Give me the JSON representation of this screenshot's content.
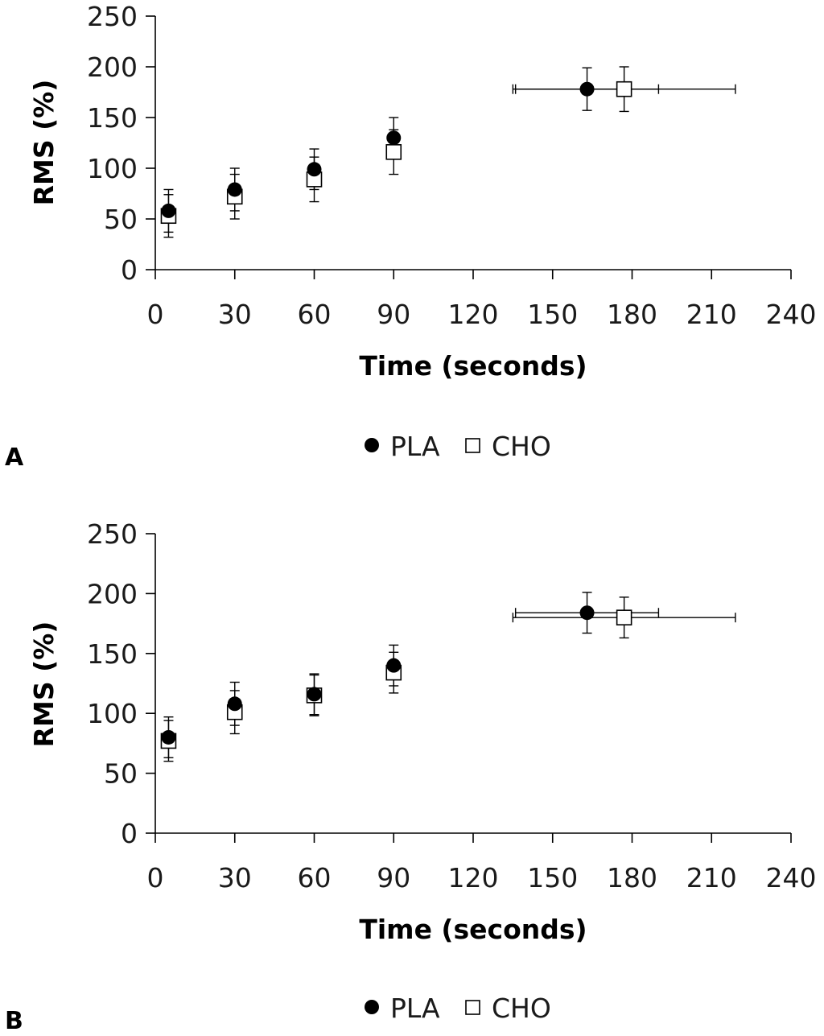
{
  "chart_data": [
    {
      "type": "scatter",
      "panel_label": "A",
      "xlabel": "Time (seconds)",
      "ylabel": "RMS (%)",
      "xlim": [
        0,
        240
      ],
      "ylim": [
        0,
        250
      ],
      "xticks": [
        0,
        30,
        60,
        90,
        120,
        150,
        180,
        210,
        240
      ],
      "yticks": [
        0,
        50,
        100,
        150,
        200,
        250
      ],
      "legend": [
        "PLA",
        "CHO"
      ],
      "series": [
        {
          "name": "PLA",
          "marker": "filled-circle",
          "points": [
            {
              "x": 5,
              "y": 58,
              "yerr": 21
            },
            {
              "x": 30,
              "y": 79,
              "yerr": 21
            },
            {
              "x": 60,
              "y": 99,
              "yerr": 20
            },
            {
              "x": 90,
              "y": 130,
              "yerr": 20
            },
            {
              "x": 163,
              "y": 178,
              "yerr": 21,
              "xerr": 27
            }
          ]
        },
        {
          "name": "CHO",
          "marker": "open-square",
          "points": [
            {
              "x": 5,
              "y": 53,
              "yerr": 21
            },
            {
              "x": 30,
              "y": 72,
              "yerr": 22
            },
            {
              "x": 60,
              "y": 89,
              "yerr": 22
            },
            {
              "x": 90,
              "y": 116,
              "yerr": 22
            },
            {
              "x": 177,
              "y": 178,
              "yerr": 22,
              "xerr": 42
            }
          ]
        }
      ]
    },
    {
      "type": "scatter",
      "panel_label": "B",
      "xlabel": "Time (seconds)",
      "ylabel": "RMS (%)",
      "xlim": [
        0,
        240
      ],
      "ylim": [
        0,
        250
      ],
      "xticks": [
        0,
        30,
        60,
        90,
        120,
        150,
        180,
        210,
        240
      ],
      "yticks": [
        0,
        50,
        100,
        150,
        200,
        250
      ],
      "legend": [
        "PLA",
        "CHO"
      ],
      "series": [
        {
          "name": "PLA",
          "marker": "filled-circle",
          "points": [
            {
              "x": 5,
              "y": 80,
              "yerr": 17
            },
            {
              "x": 30,
              "y": 108,
              "yerr": 18
            },
            {
              "x": 60,
              "y": 116,
              "yerr": 17
            },
            {
              "x": 90,
              "y": 140,
              "yerr": 17
            },
            {
              "x": 163,
              "y": 184,
              "yerr": 17,
              "xerr": 27
            }
          ]
        },
        {
          "name": "CHO",
          "marker": "open-square",
          "points": [
            {
              "x": 5,
              "y": 77,
              "yerr": 17
            },
            {
              "x": 30,
              "y": 101,
              "yerr": 18
            },
            {
              "x": 60,
              "y": 115,
              "yerr": 17
            },
            {
              "x": 90,
              "y": 134,
              "yerr": 17
            },
            {
              "x": 177,
              "y": 180,
              "yerr": 17,
              "xerr": 42
            }
          ]
        }
      ]
    }
  ]
}
